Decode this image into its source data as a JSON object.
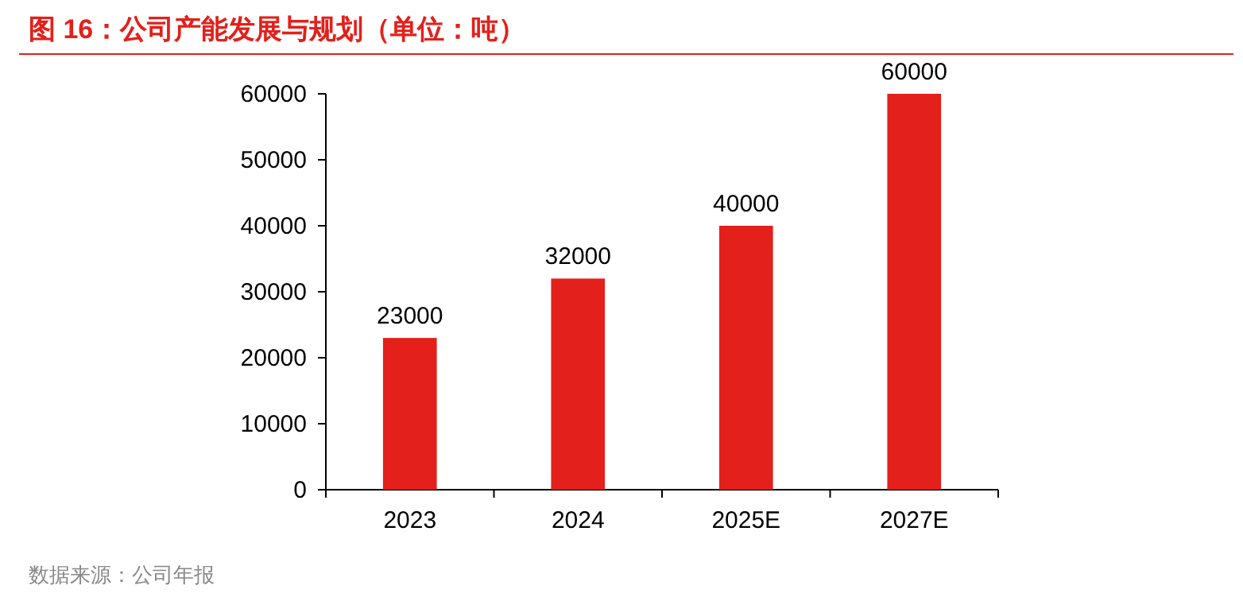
{
  "chart_data": {
    "type": "bar",
    "title": "图 16：公司产能发展与规划（单位：吨）",
    "categories": [
      "2023",
      "2024",
      "2025E",
      "2027E"
    ],
    "values": [
      23000,
      32000,
      40000,
      60000
    ],
    "color": "#e3201b",
    "ylim": [
      0,
      60000
    ],
    "yticks": [
      0,
      10000,
      20000,
      30000,
      40000,
      50000,
      60000
    ],
    "data_labels": true,
    "annotations": [
      "数据来源：公司年报"
    ]
  }
}
